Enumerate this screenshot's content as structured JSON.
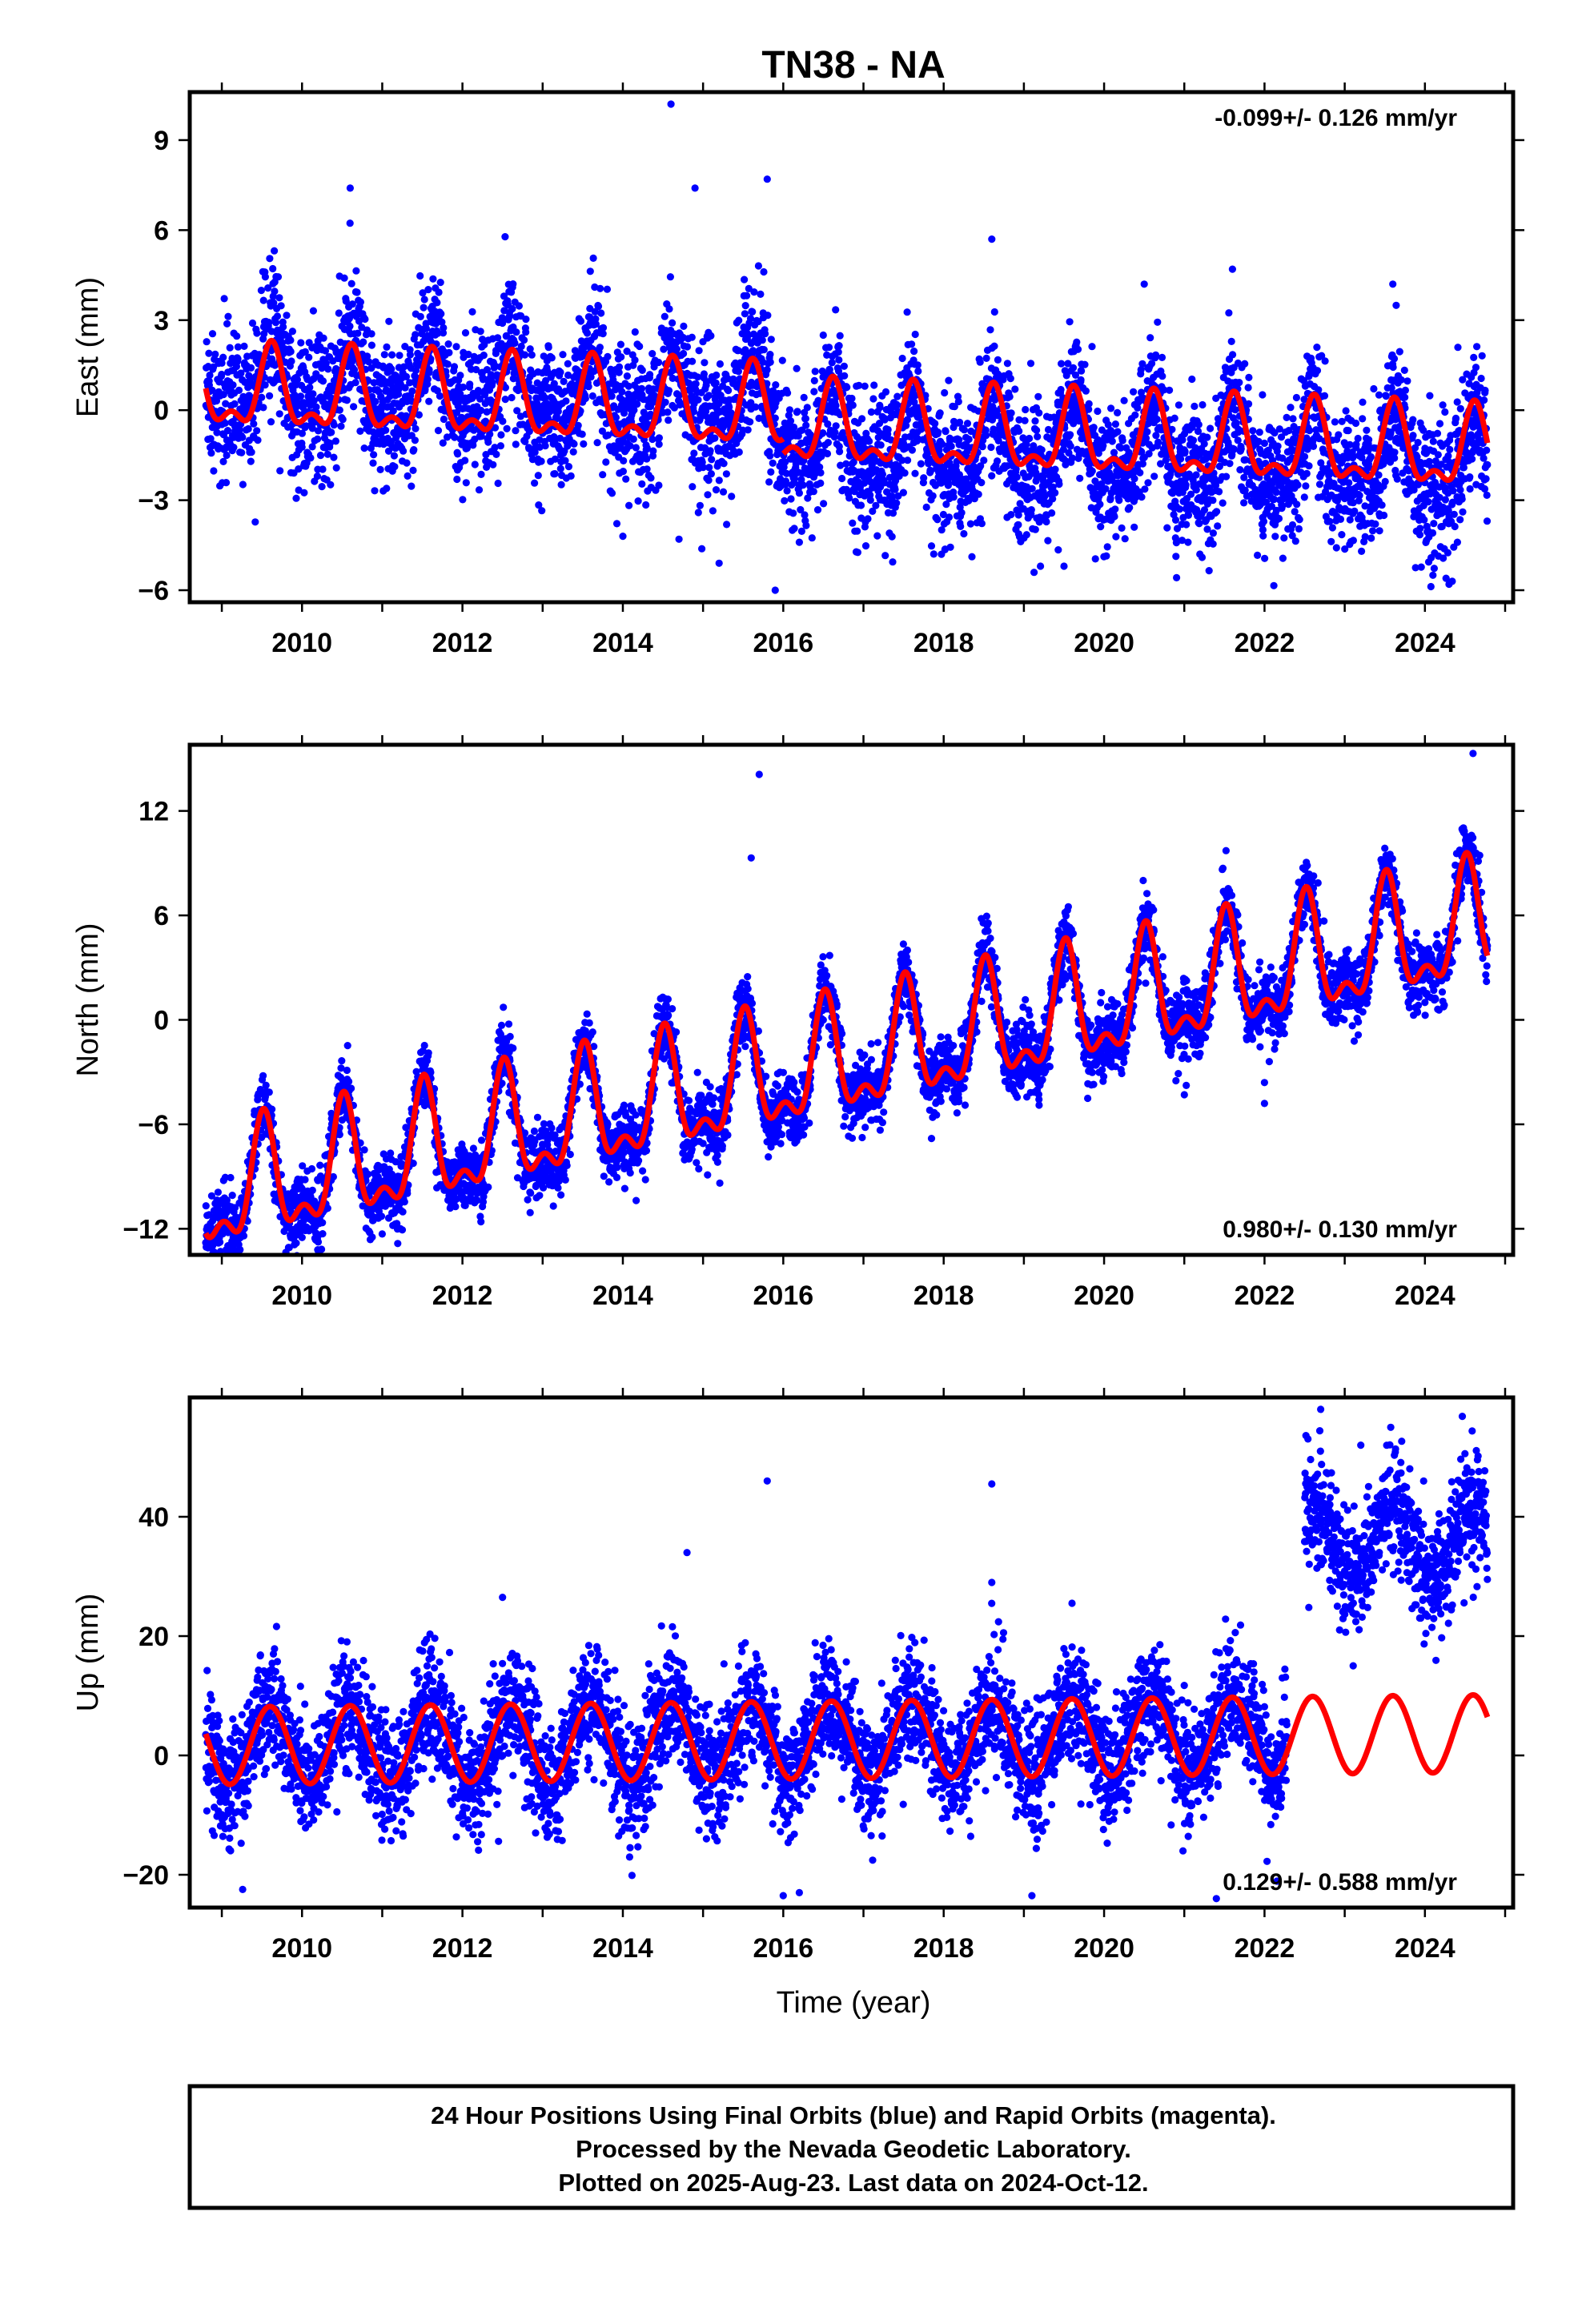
{
  "title": "TN38 - NA",
  "xlabel": "Time (year)",
  "footer": {
    "line1": "24 Hour Positions Using Final Orbits (blue) and Rapid Orbits (magenta).",
    "line2": "Processed by the Nevada Geodetic Laboratory.",
    "line3": "Plotted on 2025-Aug-23. Last data on 2024-Oct-12."
  },
  "colors": {
    "data_points": "#0000ff",
    "model_fit": "#ff0000",
    "frame": "#000000"
  },
  "chart_data": [
    {
      "type": "scatter",
      "panel": "east",
      "ylabel": "East (mm)",
      "rate_label": "-0.099+/- 0.126 mm/yr",
      "rate_position": "top-right",
      "xlim": [
        2008.6,
        2025.1
      ],
      "ylim": [
        -6.4,
        10.6
      ],
      "x_ticks": [
        2010,
        2012,
        2014,
        2016,
        2018,
        2020,
        2022,
        2024
      ],
      "x_tick_labels": [
        "2010",
        "2012",
        "2014",
        "2016",
        "2018",
        "2020",
        "2022",
        "2024"
      ],
      "y_ticks": [
        -6,
        -3,
        0,
        3,
        6,
        9
      ],
      "y_tick_labels": [
        "−6",
        "−3",
        "0",
        "3",
        "6",
        "9"
      ],
      "data_start": 2008.8,
      "data_end": 2024.78,
      "series": [
        {
          "kind": "model",
          "segments": [
            {
              "from": 2008.8,
              "to": 2016.0,
              "offset": 0.6,
              "rate": -0.099,
              "annual_amp": 1.2,
              "annual_peak": 0.62,
              "semi_amp": 0.6,
              "semi_peak": 0.62
            },
            {
              "from": 2016.0,
              "to": 2024.78,
              "offset": 0.1,
              "rate": -0.099,
              "annual_amp": 1.2,
              "annual_peak": 0.62,
              "semi_amp": 0.6,
              "semi_peak": 0.62
            }
          ]
        },
        {
          "kind": "points",
          "scatter_sd": 1.15,
          "segments": [
            {
              "from": 2008.8,
              "to": 2016.0,
              "extra_offset": 0.4
            },
            {
              "from": 2016.0,
              "to": 2024.78,
              "extra_offset": -0.4
            }
          ],
          "outliers": [
            [
              2014.6,
              10.2
            ],
            [
              2014.9,
              7.4
            ],
            [
              2010.6,
              7.4
            ],
            [
              2015.8,
              7.7
            ],
            [
              2015.9,
              -6.0
            ],
            [
              2015.2,
              -5.1
            ],
            [
              2014.7,
              -4.3
            ],
            [
              2018.6,
              5.7
            ],
            [
              2019.5,
              -5.2
            ],
            [
              2024.3,
              -5.8
            ],
            [
              2024.1,
              -5.5
            ],
            [
              2016.2,
              -4.4
            ],
            [
              2014.0,
              -4.2
            ],
            [
              2020.5,
              4.2
            ],
            [
              2021.6,
              4.7
            ],
            [
              2023.6,
              4.2
            ]
          ]
        }
      ]
    },
    {
      "type": "scatter",
      "panel": "north",
      "ylabel": "North (mm)",
      "rate_label": "0.980+/- 0.130 mm/yr",
      "rate_position": "bottom-right",
      "xlim": [
        2008.6,
        2025.1
      ],
      "ylim": [
        -13.5,
        15.8
      ],
      "x_ticks": [
        2010,
        2012,
        2014,
        2016,
        2018,
        2020,
        2022,
        2024
      ],
      "x_tick_labels": [
        "2010",
        "2012",
        "2014",
        "2016",
        "2018",
        "2020",
        "2022",
        "2024"
      ],
      "y_ticks": [
        -12,
        -6,
        0,
        6,
        12
      ],
      "y_tick_labels": [
        "−12",
        "−6",
        "0",
        "6",
        "12"
      ],
      "data_start": 2008.8,
      "data_end": 2024.78,
      "series": [
        {
          "kind": "model",
          "segments": [
            {
              "from": 2008.8,
              "to": 2024.78,
              "offset": -10.3,
              "rate": 0.98,
              "annual_amp": 3.0,
              "annual_peak": 0.52,
              "semi_amp": 1.5,
              "semi_peak": 0.52
            }
          ]
        },
        {
          "kind": "points",
          "scatter_sd": 1.0,
          "segments": [
            {
              "from": 2008.8,
              "to": 2024.78,
              "extra_offset": 0.0
            }
          ],
          "outliers": [
            [
              2015.7,
              14.1
            ],
            [
              2015.6,
              9.3
            ],
            [
              2018.9,
              -4.3
            ],
            [
              2021.0,
              -4.3
            ],
            [
              2022.0,
              -4.8
            ],
            [
              2022.0,
              -3.6
            ],
            [
              2015.0,
              -7.1
            ],
            [
              2010.0,
              -12.5
            ],
            [
              2011.0,
              -12.3
            ],
            [
              2024.6,
              15.3
            ],
            [
              2024.0,
              1.0
            ]
          ]
        }
      ]
    },
    {
      "type": "scatter",
      "panel": "up",
      "ylabel": "Up (mm)",
      "rate_label": "0.129+/- 0.588 mm/yr",
      "rate_position": "bottom-right",
      "xlim": [
        2008.6,
        2025.1
      ],
      "ylim": [
        -25.5,
        60
      ],
      "x_ticks": [
        2010,
        2012,
        2014,
        2016,
        2018,
        2020,
        2022,
        2024
      ],
      "x_tick_labels": [
        "2010",
        "2012",
        "2014",
        "2016",
        "2018",
        "2020",
        "2022",
        "2024"
      ],
      "y_ticks": [
        -20,
        0,
        20,
        40
      ],
      "y_tick_labels": [
        "−20",
        "0",
        "20",
        "40"
      ],
      "data_start": 2008.8,
      "data_end": 2024.78,
      "series": [
        {
          "kind": "model",
          "segments": [
            {
              "from": 2008.8,
              "to": 2024.78,
              "offset": 1.6,
              "rate": 0.129,
              "annual_amp": 6.5,
              "annual_peak": 0.6,
              "semi_amp": 0.0,
              "semi_peak": 0.6
            }
          ]
        },
        {
          "kind": "points",
          "scatter_sd": 5.0,
          "segments": [
            {
              "from": 2008.8,
              "to": 2022.28,
              "extra_offset": 0.0
            },
            {
              "from": 2022.5,
              "to": 2024.78,
              "extra_offset": 32.0
            }
          ],
          "outliers": [
            [
              2015.8,
              46.0
            ],
            [
              2018.6,
              45.5
            ],
            [
              2014.8,
              34.0
            ],
            [
              2018.6,
              29.0
            ],
            [
              2012.5,
              26.5
            ],
            [
              2019.6,
              25.5
            ],
            [
              2016.0,
              -23.5
            ],
            [
              2016.2,
              -23.0
            ],
            [
              2019.1,
              -23.5
            ],
            [
              2021.4,
              -24.0
            ],
            [
              2022.7,
              58.0
            ],
            [
              2023.2,
              52.0
            ]
          ]
        }
      ]
    }
  ]
}
